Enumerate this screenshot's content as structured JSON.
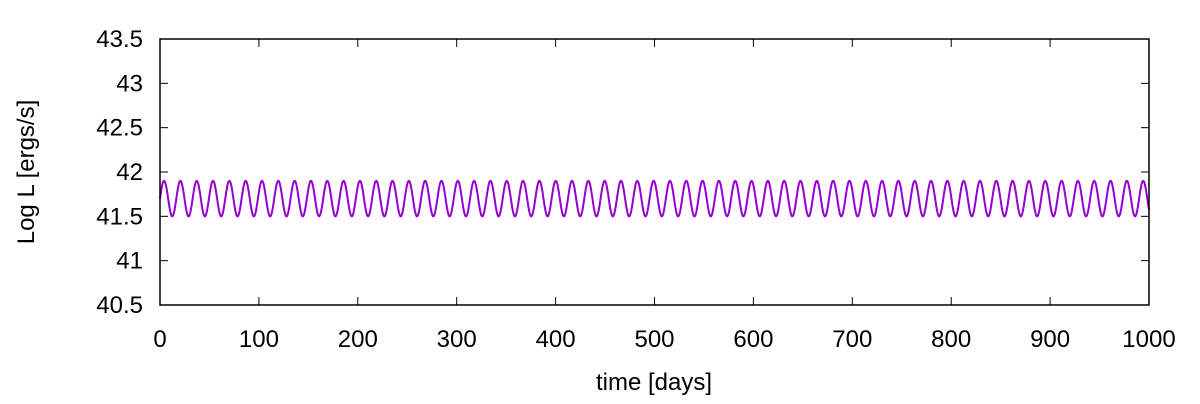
{
  "chart_data": {
    "type": "line",
    "title": "",
    "xlabel": "time [days]",
    "ylabel": "Log L [ergs/s]",
    "xlim": [
      0,
      1000
    ],
    "ylim": [
      40.5,
      43.5
    ],
    "x_ticks": [
      0,
      100,
      200,
      300,
      400,
      500,
      600,
      700,
      800,
      900,
      1000
    ],
    "y_ticks": [
      40.5,
      41,
      41.5,
      42,
      42.5,
      43,
      43.5
    ],
    "x_tick_labels": [
      "0",
      "100",
      "200",
      "300",
      "400",
      "500",
      "600",
      "700",
      "800",
      "900",
      "1000"
    ],
    "y_tick_labels": [
      "40.5",
      "41",
      "41.5",
      "42",
      "42.5",
      "43",
      "43.5"
    ],
    "grid": false,
    "legend": "none",
    "series": [
      {
        "color": "#9400d3",
        "shape": "periodic oscillation",
        "period_days": 16.5,
        "min": 41.5,
        "max": 41.9,
        "x_start": 0,
        "x_end": 1000
      }
    ]
  }
}
